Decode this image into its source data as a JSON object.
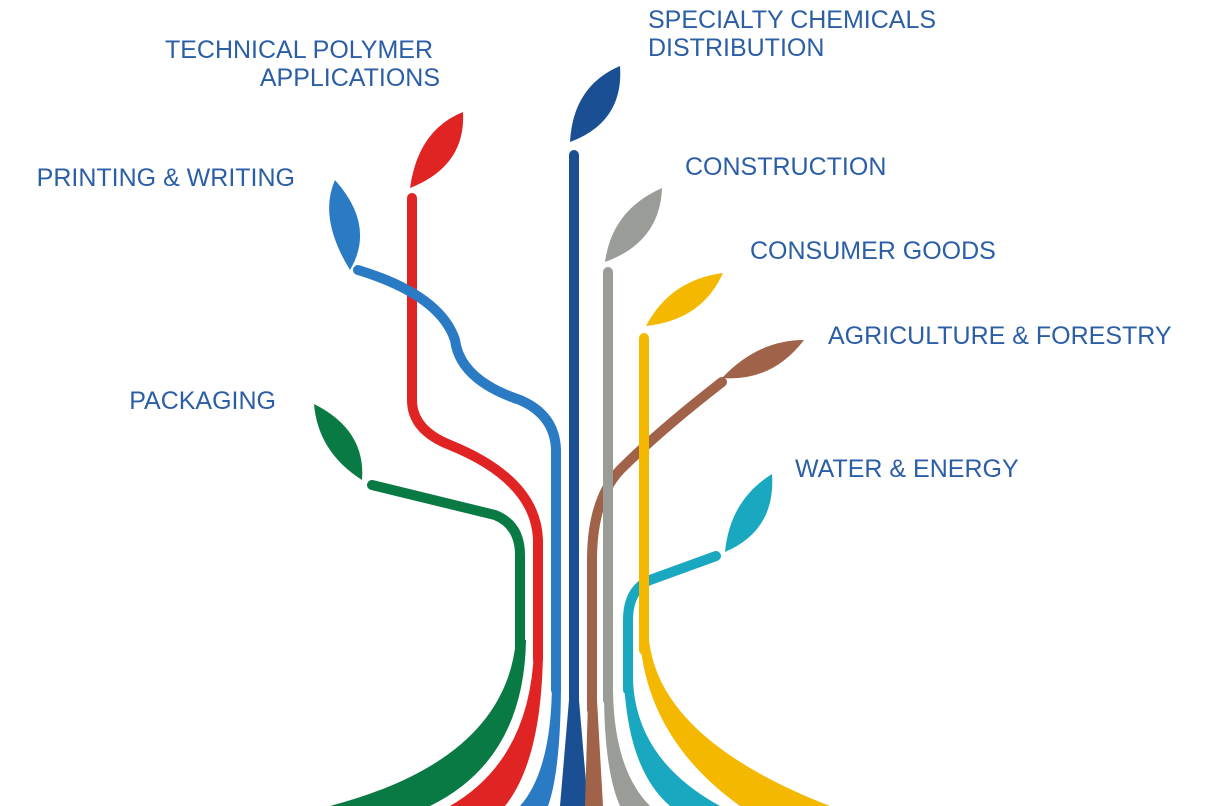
{
  "nodes": [
    {
      "lines": [
        "SPECIALTY CHEMICALS",
        "DISTRIBUTION"
      ]
    },
    {
      "lines": [
        "TECHNICAL POLYMER",
        "APPLICATIONS"
      ]
    },
    {
      "lines": [
        "PRINTING & WRITING"
      ]
    },
    {
      "lines": [
        "CONSTRUCTION"
      ]
    },
    {
      "lines": [
        "CONSUMER GOODS"
      ]
    },
    {
      "lines": [
        "AGRICULTURE & FORESTRY"
      ]
    },
    {
      "lines": [
        "PACKAGING"
      ]
    },
    {
      "lines": [
        "WATER & ENERGY"
      ]
    }
  ]
}
